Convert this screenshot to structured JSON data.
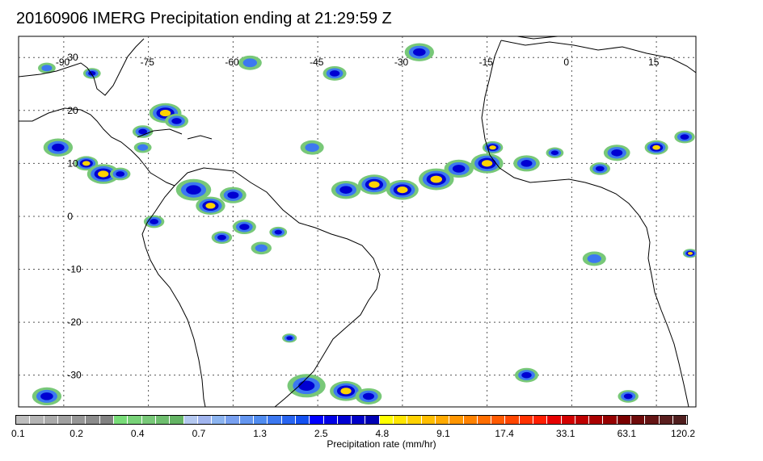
{
  "title": "20160906 IMERG Precipitation ending at 21:29:59 Z",
  "map": {
    "lon_range": [
      -98,
      22
    ],
    "lat_range": [
      -36,
      34
    ],
    "lon_ticks": [
      -90,
      -75,
      -60,
      -45,
      -30,
      -15,
      0,
      15
    ],
    "lon_labels": [
      "-90",
      "-75",
      "-60",
      "-45",
      "-30",
      "-15",
      "0",
      "15"
    ],
    "lat_ticks": [
      30,
      20,
      10,
      0,
      -10,
      -20,
      -30
    ],
    "lat_labels": [
      "30",
      "20",
      "10",
      "0",
      "-10",
      "-20",
      "-30"
    ],
    "gridlines": "dotted"
  },
  "precip_cells": [
    {
      "lon": -91,
      "lat": 13,
      "r": 2.0,
      "level": 2
    },
    {
      "lon": -86,
      "lat": 10,
      "r": 1.6,
      "level": 3
    },
    {
      "lon": -83,
      "lat": 8,
      "r": 2.2,
      "level": 3
    },
    {
      "lon": -80,
      "lat": 8,
      "r": 1.4,
      "level": 2
    },
    {
      "lon": -76,
      "lat": 16,
      "r": 1.4,
      "level": 2
    },
    {
      "lon": -72,
      "lat": 19.5,
      "r": 2.2,
      "level": 3
    },
    {
      "lon": -70,
      "lat": 18,
      "r": 1.6,
      "level": 2
    },
    {
      "lon": -76,
      "lat": 13,
      "r": 1.2,
      "level": 1
    },
    {
      "lon": -67,
      "lat": 5,
      "r": 2.4,
      "level": 2
    },
    {
      "lon": -64,
      "lat": 2,
      "r": 2.0,
      "level": 3
    },
    {
      "lon": -60,
      "lat": 4,
      "r": 1.8,
      "level": 2
    },
    {
      "lon": -58,
      "lat": -2,
      "r": 1.6,
      "level": 2
    },
    {
      "lon": -55,
      "lat": -6,
      "r": 1.4,
      "level": 1
    },
    {
      "lon": -62,
      "lat": -4,
      "r": 1.4,
      "level": 2
    },
    {
      "lon": -74,
      "lat": -1,
      "r": 1.4,
      "level": 2
    },
    {
      "lon": -52,
      "lat": -3,
      "r": 1.2,
      "level": 2
    },
    {
      "lon": -46,
      "lat": 13,
      "r": 1.6,
      "level": 1
    },
    {
      "lon": -40,
      "lat": 5,
      "r": 2.0,
      "level": 2
    },
    {
      "lon": -35,
      "lat": 6,
      "r": 2.2,
      "level": 3
    },
    {
      "lon": -30,
      "lat": 5,
      "r": 2.2,
      "level": 3
    },
    {
      "lon": -24,
      "lat": 7,
      "r": 2.4,
      "level": 3
    },
    {
      "lon": -20,
      "lat": 9,
      "r": 2.0,
      "level": 2
    },
    {
      "lon": -15,
      "lat": 10,
      "r": 2.2,
      "level": 3
    },
    {
      "lon": -14,
      "lat": 13,
      "r": 1.4,
      "level": 3
    },
    {
      "lon": -8,
      "lat": 10,
      "r": 1.8,
      "level": 2
    },
    {
      "lon": -3,
      "lat": 12,
      "r": 1.2,
      "level": 2
    },
    {
      "lon": 5,
      "lat": 9,
      "r": 1.4,
      "level": 2
    },
    {
      "lon": 8,
      "lat": 12,
      "r": 1.8,
      "level": 2
    },
    {
      "lon": 15,
      "lat": 13,
      "r": 1.6,
      "level": 3
    },
    {
      "lon": 20,
      "lat": 15,
      "r": 1.4,
      "level": 2
    },
    {
      "lon": 21,
      "lat": -7,
      "r": 1.0,
      "level": 3
    },
    {
      "lon": 4,
      "lat": -8,
      "r": 1.6,
      "level": 1
    },
    {
      "lon": -42,
      "lat": 27,
      "r": 1.6,
      "level": 2
    },
    {
      "lon": -57,
      "lat": 29,
      "r": 1.6,
      "level": 1
    },
    {
      "lon": -27,
      "lat": 31,
      "r": 2.0,
      "level": 2
    },
    {
      "lon": -8,
      "lat": -30,
      "r": 1.6,
      "level": 2
    },
    {
      "lon": 10,
      "lat": -34,
      "r": 1.4,
      "level": 2
    },
    {
      "lon": -47,
      "lat": -32,
      "r": 2.6,
      "level": 2
    },
    {
      "lon": -40,
      "lat": -33,
      "r": 2.2,
      "level": 3
    },
    {
      "lon": -36,
      "lat": -34,
      "r": 1.8,
      "level": 2
    },
    {
      "lon": -93,
      "lat": -34,
      "r": 2.0,
      "level": 2
    },
    {
      "lon": -50,
      "lat": -23,
      "r": 1.0,
      "level": 2
    },
    {
      "lon": -93,
      "lat": 28,
      "r": 1.2,
      "level": 1
    },
    {
      "lon": -85,
      "lat": 27,
      "r": 1.2,
      "level": 2
    }
  ],
  "colorbar": {
    "colors": [
      "#bebebe",
      "#b4b4b4",
      "#aaaaaa",
      "#a0a0a0",
      "#969696",
      "#8c8c8c",
      "#828282",
      "#78dc78",
      "#78d278",
      "#78c878",
      "#6ebe6e",
      "#64b464",
      "#b4c8f0",
      "#a0b4ee",
      "#8cb4f0",
      "#78a0f0",
      "#6496f0",
      "#508cf0",
      "#3c78f0",
      "#2864f0",
      "#1450f0",
      "#0000ff",
      "#0000e6",
      "#0000d2",
      "#0000c8",
      "#0000b4",
      "#ffff00",
      "#ffe600",
      "#ffd200",
      "#ffbe00",
      "#ffaa00",
      "#ff9600",
      "#ff8200",
      "#ff6e00",
      "#ff5a00",
      "#ff4600",
      "#ff3200",
      "#ff1e00",
      "#e60000",
      "#d20000",
      "#be0000",
      "#aa0000",
      "#960000",
      "#7a0000",
      "#6e0a0a",
      "#641414",
      "#5a1e1e",
      "#501e1e"
    ],
    "labels": [
      "0.1",
      "0.2",
      "0.4",
      "0.7",
      "1.3",
      "2.5",
      "4.8",
      "9.1",
      "17.4",
      "33.1",
      "63.1",
      "120.2"
    ],
    "title": "Precipitation rate (mm/hr)"
  }
}
